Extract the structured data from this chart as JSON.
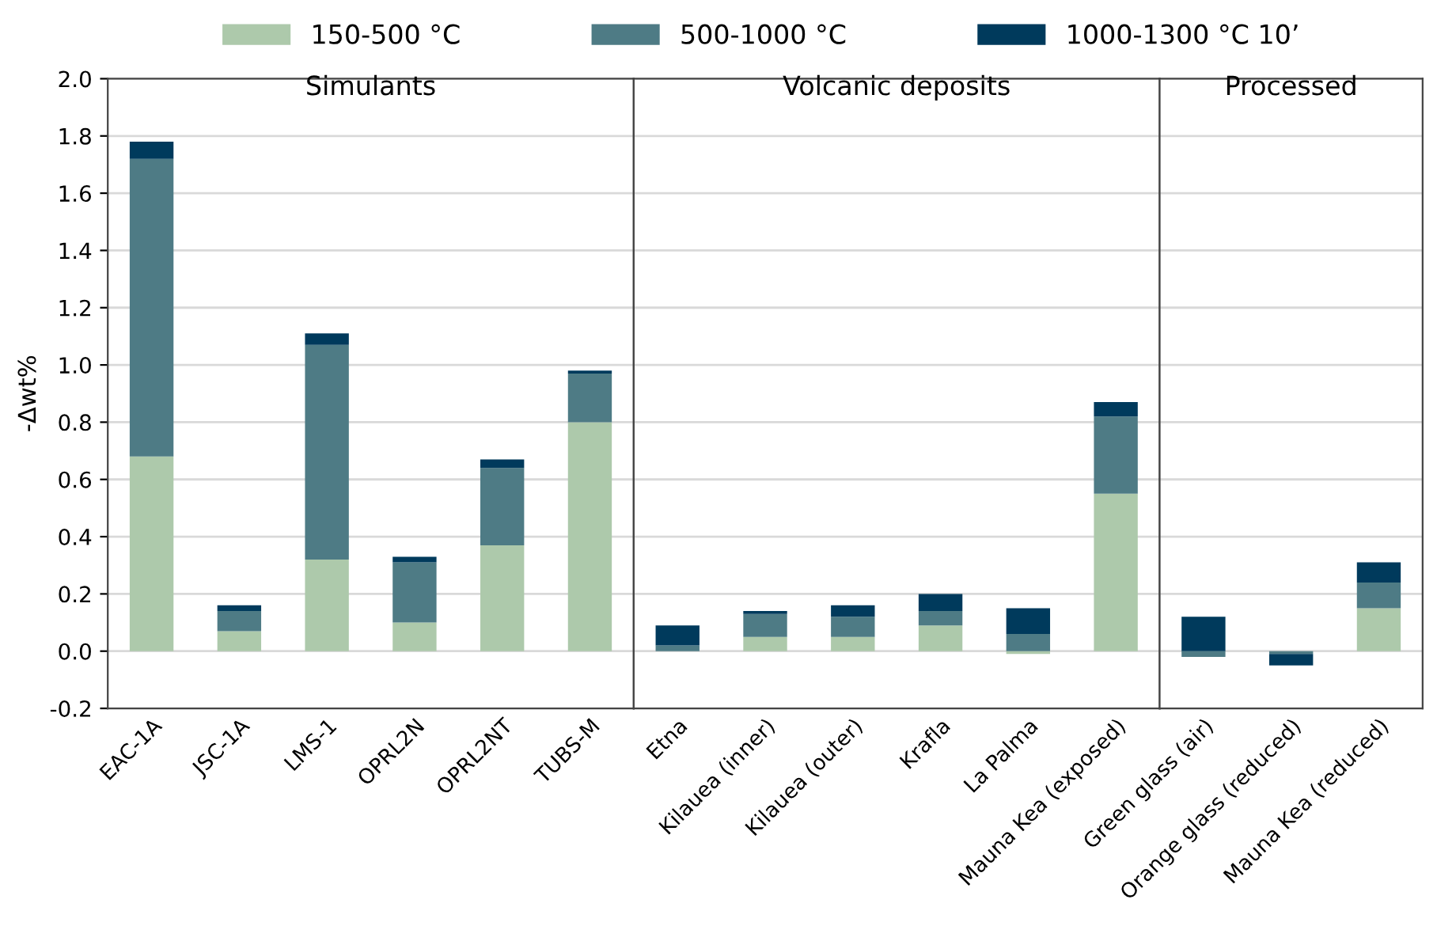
{
  "chart_data": [
    {
      "type": "bar",
      "title": "Simulants",
      "ylabel": "-Δwt%",
      "stacked": true,
      "grid": "y",
      "legend": "top",
      "categories": [
        "EAC-1A",
        "JSC-1A",
        "LMS-1",
        "OPRL2N",
        "OPRL2NT",
        "TUBS-M"
      ],
      "ylim": [
        -0.2,
        2.0
      ],
      "yticks": [
        {
          "value": -0.2,
          "label": "-0.2"
        },
        {
          "value": 0,
          "label": "0.0"
        },
        0.2,
        0.4,
        0.6,
        0.8,
        {
          "value": 1,
          "label": "1.0"
        },
        1.2,
        1.4,
        1.6,
        1.8,
        {
          "value": 2,
          "label": "2.0"
        }
      ],
      "series": [
        {
          "name": "150-500 °C",
          "color": "#adc9ab",
          "values": [
            0.68,
            0.07,
            0.32,
            0.1,
            0.37,
            0.8
          ]
        },
        {
          "name": "500-1000 °C",
          "color": "#4e7b85",
          "values": [
            1.04,
            0.07,
            0.75,
            0.21,
            0.27,
            0.17
          ]
        },
        {
          "name": "1000-1300 °C 10’",
          "color": "#003a5c",
          "values": [
            0.06,
            0.02,
            0.04,
            0.02,
            0.03,
            0.01
          ]
        }
      ]
    },
    {
      "type": "bar",
      "title": "Volcanic deposits",
      "stacked": true,
      "grid": "y",
      "tick_labels": "x",
      "categories": [
        "Etna",
        "Kilauea (inner)",
        "Kilauea (outer)",
        "Krafla",
        "La Palma",
        "Mauna Kea (exposed)"
      ],
      "ylim": [
        -0.2,
        2.0
      ],
      "series": [
        {
          "color": "#adc9ab",
          "values": [
            0,
            0.05,
            0.05,
            0.09,
            -0.01,
            0.55
          ]
        },
        {
          "color": "#4e7b85",
          "values": [
            0.02,
            0.08,
            0.07,
            0.05,
            0.06,
            0.27
          ]
        },
        {
          "color": "#003a5c",
          "values": [
            0.07,
            0.01,
            0.04,
            0.06,
            0.09,
            0.05
          ]
        }
      ]
    },
    {
      "type": "bar",
      "title": "Processed",
      "stacked": true,
      "grid": "y",
      "tick_labels": "x",
      "categories": [
        "Green glass (air)",
        "Orange glass (reduced)",
        "Mauna Kea (reduced)"
      ],
      "ylim": [
        -0.2,
        2.0
      ],
      "series": [
        {
          "color": "#adc9ab",
          "values": [
            0,
            0,
            0.15
          ]
        },
        {
          "color": "#4e7b85",
          "values": [
            -0.02,
            -0.01,
            0.09
          ]
        },
        {
          "color": "#003a5c",
          "values": [
            0.12,
            -0.04,
            0.07
          ]
        }
      ]
    }
  ]
}
